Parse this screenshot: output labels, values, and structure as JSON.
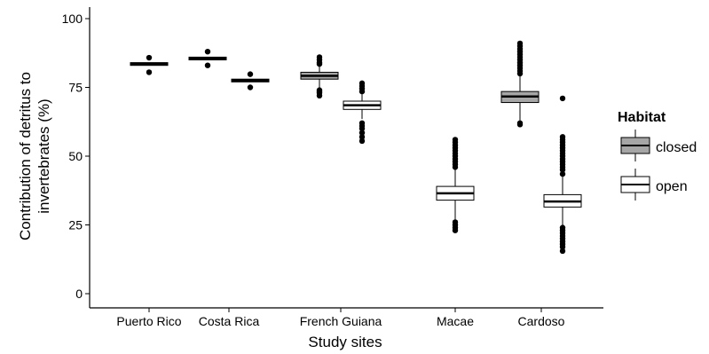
{
  "chart_data": {
    "type": "boxplot",
    "title": "",
    "xlabel": "Study sites",
    "ylabel_lines": [
      "Contribution of detritus to",
      "invertebrates (%)"
    ],
    "ylim": [
      0,
      100
    ],
    "yticks": [
      0,
      25,
      50,
      75,
      100
    ],
    "categories": [
      "Puerto Rico",
      "Costa Rica",
      "French Guiana",
      "Macae",
      "Cardoso"
    ],
    "legend": {
      "title": "Habitat",
      "position": "right",
      "entries": [
        {
          "key": "closed",
          "label": "closed",
          "fill": "#a6a6a6"
        },
        {
          "key": "open",
          "label": "open",
          "fill": "#ffffff"
        }
      ]
    },
    "series": [
      {
        "name": "closed",
        "fill": "#a6a6a6",
        "boxes": [
          {
            "category": "Puerto Rico",
            "whisker_low": 83,
            "q1": 83,
            "median": 83.5,
            "q3": 84,
            "whisker_high": 84,
            "outliers": [
              80.5,
              85.8
            ]
          },
          {
            "category": "Costa Rica",
            "whisker_low": 85,
            "q1": 85,
            "median": 85.5,
            "q3": 86,
            "whisker_high": 86,
            "outliers": [
              83,
              88
            ]
          },
          {
            "category": "French Guiana",
            "whisker_low": 74.5,
            "q1": 78,
            "median": 79.2,
            "q3": 80.5,
            "whisker_high": 83,
            "outliers": [
              72,
              73,
              73.5,
              74,
              83.5,
              84,
              85,
              86
            ]
          },
          {
            "category": "Cardoso",
            "whisker_low": 62.5,
            "q1": 69.5,
            "median": 71.7,
            "q3": 73.5,
            "whisker_high": 79.5,
            "outliers": [
              61.5,
              62,
              80,
              81,
              82,
              83,
              84,
              85,
              86,
              87,
              88,
              89,
              90,
              91
            ]
          }
        ]
      },
      {
        "name": "open",
        "fill": "#ffffff",
        "boxes": [
          {
            "category": "Costa Rica",
            "whisker_low": 77,
            "q1": 77,
            "median": 77.5,
            "q3": 78,
            "whisker_high": 78,
            "outliers": [
              75,
              79.8
            ]
          },
          {
            "category": "French Guiana",
            "whisker_low": 63.5,
            "q1": 67,
            "median": 68.5,
            "q3": 70,
            "whisker_high": 72.5,
            "outliers": [
              55.5,
              57,
              58.5,
              60,
              61,
              62,
              73.5,
              74.5,
              75.5,
              76.5
            ]
          },
          {
            "category": "Macae",
            "whisker_low": 26.5,
            "q1": 34,
            "median": 36.5,
            "q3": 39,
            "whisker_high": 45,
            "outliers": [
              23,
              24,
              25,
              26,
              46,
              47,
              48,
              49,
              50,
              51,
              52,
              53,
              54,
              55,
              56
            ]
          },
          {
            "category": "Cardoso",
            "whisker_low": 25,
            "q1": 31.5,
            "median": 33.5,
            "q3": 36,
            "whisker_high": 42.5,
            "outliers": [
              15.5,
              17,
              18,
              19,
              20,
              21,
              22,
              23,
              24,
              43.5,
              45,
              46,
              47,
              48,
              49,
              50,
              51,
              52,
              53,
              54,
              55,
              56,
              57,
              71
            ]
          }
        ]
      }
    ]
  }
}
